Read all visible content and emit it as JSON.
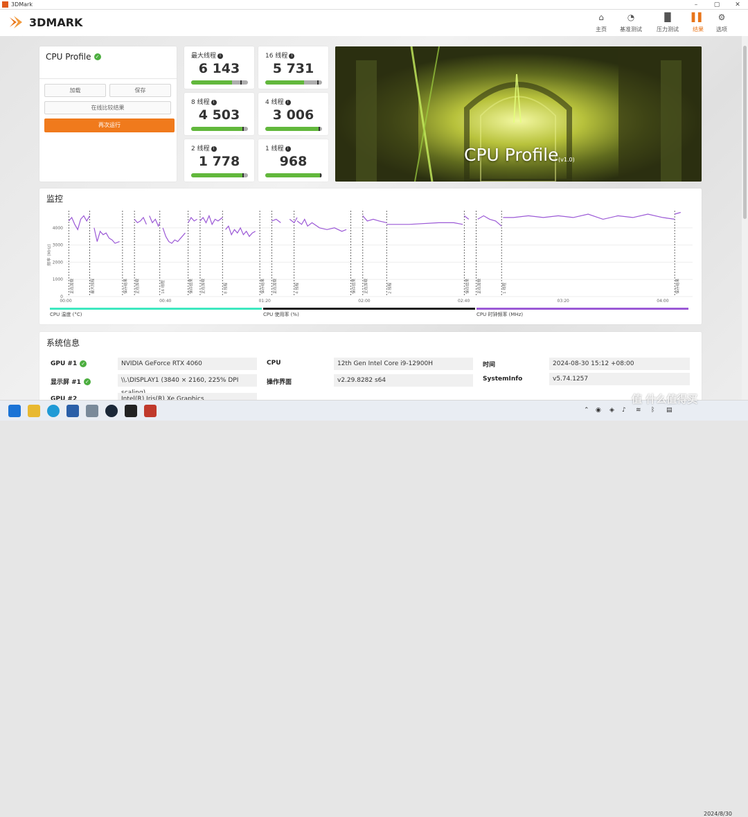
{
  "window": {
    "title": "3DMark"
  },
  "header": {
    "logo_text": "3DMARK",
    "nav": [
      {
        "label": "主页",
        "icon": "home-icon"
      },
      {
        "label": "基准测试",
        "icon": "gauge-icon"
      },
      {
        "label": "压力测试",
        "icon": "bar-chart-icon"
      },
      {
        "label": "结果",
        "icon": "results-icon",
        "active": true
      },
      {
        "label": "选项",
        "icon": "gear-icon"
      }
    ]
  },
  "profile": {
    "title": "CPU Profile",
    "load_label": "加载",
    "save_label": "保存",
    "compare_label": "在线比较结果",
    "run_again_label": "再次运行"
  },
  "scores": [
    {
      "label": "最大线程",
      "value": "6 143",
      "fill": 0.72,
      "marker": 0.88
    },
    {
      "label": "16 线程",
      "value": "5 731",
      "fill": 0.68,
      "marker": 0.93
    },
    {
      "label": "8 线程",
      "value": "4 503",
      "fill": 0.92,
      "marker": 0.92
    },
    {
      "label": "4 线程",
      "value": "3 006",
      "fill": 0.95,
      "marker": 0.95
    },
    {
      "label": "2 线程",
      "value": "1 778",
      "fill": 0.92,
      "marker": 0.92
    },
    {
      "label": "1 线程",
      "value": "968",
      "fill": 0.98,
      "marker": 0.98
    }
  ],
  "banner": {
    "title": "CPU Profile",
    "version": "(v1.0)"
  },
  "monitor": {
    "title": "监控",
    "legend": [
      {
        "label": "CPU 温度 (°C)",
        "color": "#3ee8c0"
      },
      {
        "label": "CPU 使用率 (%)",
        "color": "#1a1a1a"
      },
      {
        "label": "CPU 时钟频率 (MHz)",
        "color": "#9b59d6"
      }
    ]
  },
  "chart_data": {
    "type": "line",
    "ylabel": "频率 (MHz)",
    "y_ticks": [
      "0",
      "1000",
      "2000",
      "3000",
      "4000"
    ],
    "ylim": [
      0,
      5000
    ],
    "xlim": [
      0,
      4.2
    ],
    "x_ticks": [
      {
        "v": 0,
        "label": "00:00"
      },
      {
        "v": 0.667,
        "label": "00:40"
      },
      {
        "v": 1.333,
        "label": "01:20"
      },
      {
        "v": 2.0,
        "label": "02:00"
      },
      {
        "v": 2.667,
        "label": "02:40"
      },
      {
        "v": 3.333,
        "label": "03:20"
      },
      {
        "v": 4.0,
        "label": "04:00"
      }
    ],
    "markers": [
      {
        "x": 0.02,
        "label": "正在加载"
      },
      {
        "x": 0.16,
        "label": "最大线程"
      },
      {
        "x": 0.38,
        "label": "保存结果"
      },
      {
        "x": 0.46,
        "label": "正在加载"
      },
      {
        "x": 0.63,
        "label": "16 线程"
      },
      {
        "x": 0.82,
        "label": "保存结果"
      },
      {
        "x": 0.9,
        "label": "正在加载"
      },
      {
        "x": 1.05,
        "label": "8 线程"
      },
      {
        "x": 1.3,
        "label": "保存结果"
      },
      {
        "x": 1.38,
        "label": "正在加载"
      },
      {
        "x": 1.53,
        "label": "4 线程"
      },
      {
        "x": 1.91,
        "label": "保存结果"
      },
      {
        "x": 1.99,
        "label": "正在加载"
      },
      {
        "x": 2.15,
        "label": "2 线程"
      },
      {
        "x": 2.67,
        "label": "保存结果"
      },
      {
        "x": 2.75,
        "label": "正在加载"
      },
      {
        "x": 2.92,
        "label": "1 线程"
      },
      {
        "x": 4.08,
        "label": "保存结果"
      }
    ],
    "series": [
      {
        "name": "CPU 时钟频率 (MHz)",
        "color": "#9b59d6",
        "segments": [
          [
            [
              0.02,
              4400
            ],
            [
              0.04,
              4600
            ],
            [
              0.06,
              4200
            ],
            [
              0.08,
              3900
            ],
            [
              0.1,
              4500
            ],
            [
              0.12,
              4700
            ],
            [
              0.14,
              4400
            ],
            [
              0.16,
              4700
            ]
          ],
          [
            [
              0.19,
              4000
            ],
            [
              0.21,
              3200
            ],
            [
              0.23,
              3800
            ],
            [
              0.25,
              3600
            ],
            [
              0.27,
              3700
            ],
            [
              0.29,
              3400
            ],
            [
              0.31,
              3300
            ],
            [
              0.33,
              3100
            ],
            [
              0.36,
              3200
            ]
          ],
          [
            [
              0.46,
              4500
            ],
            [
              0.48,
              4300
            ],
            [
              0.5,
              4400
            ],
            [
              0.52,
              4600
            ],
            [
              0.54,
              4200
            ]
          ],
          [
            [
              0.56,
              4700
            ],
            [
              0.58,
              4300
            ],
            [
              0.6,
              4500
            ],
            [
              0.62,
              4100
            ],
            [
              0.63,
              4300
            ]
          ],
          [
            [
              0.65,
              4000
            ],
            [
              0.67,
              3500
            ],
            [
              0.69,
              3200
            ],
            [
              0.71,
              3100
            ],
            [
              0.73,
              3300
            ],
            [
              0.75,
              3200
            ],
            [
              0.77,
              3400
            ],
            [
              0.8,
              3700
            ]
          ],
          [
            [
              0.82,
              4300
            ],
            [
              0.84,
              4600
            ],
            [
              0.86,
              4400
            ],
            [
              0.88,
              4500
            ]
          ],
          [
            [
              0.9,
              4400
            ],
            [
              0.92,
              4600
            ],
            [
              0.94,
              4300
            ],
            [
              0.96,
              4700
            ],
            [
              0.98,
              4200
            ],
            [
              1.0,
              4500
            ],
            [
              1.02,
              4400
            ],
            [
              1.05,
              4600
            ]
          ],
          [
            [
              1.07,
              3900
            ],
            [
              1.09,
              4100
            ],
            [
              1.11,
              3600
            ],
            [
              1.13,
              3900
            ],
            [
              1.15,
              3700
            ],
            [
              1.17,
              4000
            ],
            [
              1.19,
              3600
            ],
            [
              1.21,
              3800
            ],
            [
              1.23,
              3500
            ],
            [
              1.25,
              3700
            ],
            [
              1.27,
              3800
            ]
          ],
          [
            [
              1.38,
              4400
            ],
            [
              1.41,
              4500
            ],
            [
              1.44,
              4300
            ]
          ],
          [
            [
              1.5,
              4500
            ],
            [
              1.53,
              4300
            ],
            [
              1.55,
              4600
            ]
          ],
          [
            [
              1.55,
              4400
            ],
            [
              1.58,
              4200
            ],
            [
              1.6,
              4500
            ],
            [
              1.62,
              4100
            ],
            [
              1.65,
              4300
            ],
            [
              1.7,
              4000
            ],
            [
              1.75,
              3900
            ],
            [
              1.8,
              4000
            ],
            [
              1.85,
              3800
            ],
            [
              1.88,
              3900
            ]
          ],
          [
            [
              1.99,
              4700
            ],
            [
              2.02,
              4400
            ],
            [
              2.06,
              4500
            ],
            [
              2.1,
              4400
            ],
            [
              2.15,
              4300
            ]
          ],
          [
            [
              2.15,
              4200
            ],
            [
              2.3,
              4200
            ],
            [
              2.5,
              4300
            ],
            [
              2.6,
              4300
            ],
            [
              2.66,
              4200
            ]
          ],
          [
            [
              2.67,
              4700
            ],
            [
              2.7,
              4500
            ]
          ],
          [
            [
              2.76,
              4500
            ],
            [
              2.8,
              4700
            ],
            [
              2.84,
              4500
            ],
            [
              2.88,
              4400
            ],
            [
              2.92,
              4100
            ]
          ],
          [
            [
              2.93,
              4600
            ],
            [
              3.0,
              4600
            ],
            [
              3.1,
              4700
            ],
            [
              3.2,
              4600
            ],
            [
              3.3,
              4700
            ],
            [
              3.4,
              4600
            ],
            [
              3.5,
              4800
            ],
            [
              3.6,
              4500
            ],
            [
              3.7,
              4700
            ],
            [
              3.8,
              4600
            ],
            [
              3.9,
              4800
            ],
            [
              4.0,
              4600
            ],
            [
              4.08,
              4500
            ]
          ],
          [
            [
              4.08,
              4800
            ],
            [
              4.12,
              4900
            ]
          ]
        ]
      }
    ]
  },
  "system_info": {
    "title": "系统信息",
    "rows": [
      {
        "key": "GPU #1",
        "value": "NVIDIA GeForce RTX 4060",
        "ok": true
      },
      {
        "key": "显示屏 #1",
        "value": "\\\\.\\DISPLAY1 (3840 × 2160, 225% DPI scaling)",
        "ok": true
      },
      {
        "key": "GPU #2",
        "value": "Intel(R) Iris(R) Xe Graphics",
        "ok": false
      }
    ],
    "cpu": [
      {
        "key": "CPU",
        "value": "12th Gen Intel Core i9-12900H"
      },
      {
        "key": "操作界面",
        "value": "v2.29.8282 s64"
      }
    ],
    "misc": [
      {
        "key": "时间",
        "value": "2024-08-30 15:12 +08:00"
      },
      {
        "key": "SystemInfo",
        "value": "v5.74.1257"
      }
    ]
  },
  "taskbar": {
    "clock_date": "2024/8/30",
    "watermark": "值 什么值得买"
  }
}
